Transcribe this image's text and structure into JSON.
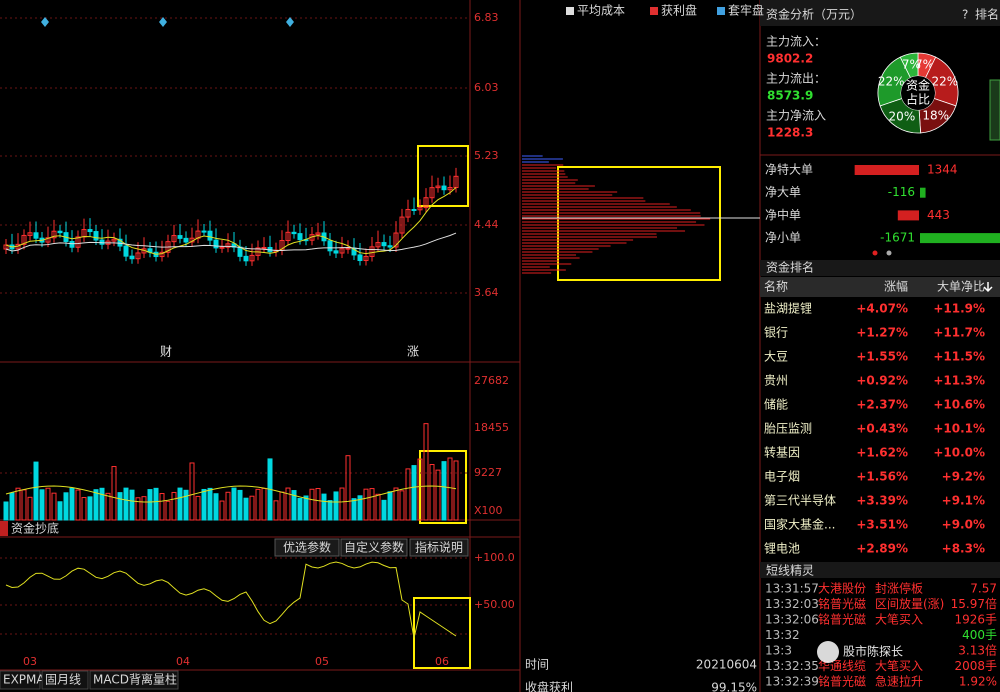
{
  "legend": [
    "平均成本",
    "获利盘",
    "套牢盘"
  ],
  "price_axis": [
    "6.83",
    "6.03",
    "5.23",
    "4.44",
    "3.64"
  ],
  "markers": [
    "财",
    "涨"
  ],
  "volume_axis": [
    "27682",
    "18455",
    "9227",
    "X100"
  ],
  "indicator": {
    "name": "资金抄底",
    "buttons": [
      "优选参数",
      "自定义参数",
      "指标说明"
    ],
    "axis": [
      "+100.0",
      "+50.00"
    ]
  },
  "months": [
    "03",
    "04",
    "05",
    "06"
  ],
  "tabs": [
    "EXPMA",
    "固月线",
    "MACD背离量柱"
  ],
  "profile_info": [
    {
      "label": "时间",
      "value": "20210604"
    },
    {
      "label": "收盘获利",
      "value": "99.15%"
    }
  ],
  "fund": {
    "title": "资金分析（万元）",
    "help": "?",
    "rank": "排名",
    "rows": [
      {
        "label": "主力流入：",
        "value": "9802.2",
        "color": "#ff3030"
      },
      {
        "label": "主力流出：",
        "value": "8573.9",
        "color": "#30e030"
      },
      {
        "label": "主力净流入",
        "value": "1228.3",
        "color": "#ff3030"
      }
    ],
    "donut": {
      "center": [
        "资金",
        "占比"
      ],
      "segments": [
        {
          "value": 7,
          "label": "7%",
          "color": "#e53935"
        },
        {
          "value": 22,
          "label": "22%",
          "color": "#b71c1c"
        },
        {
          "value": 18,
          "label": "18%",
          "color": "#7a0f0f"
        },
        {
          "value": 20,
          "label": "20%",
          "color": "#0f5e14"
        },
        {
          "value": 22,
          "label": "22%",
          "color": "#1e9a2a"
        },
        {
          "value": 7,
          "label": "7%",
          "color": "#2cb53a"
        }
      ]
    }
  },
  "net": [
    {
      "label": "净特大单",
      "value": 1344
    },
    {
      "label": "净大单",
      "value": -116
    },
    {
      "label": "净中单",
      "value": 443
    },
    {
      "label": "净小单",
      "value": -1671
    }
  ],
  "ranking": {
    "title": "资金排名",
    "header": [
      "名称",
      "涨幅",
      "大单净比"
    ],
    "rows": [
      [
        "盐湖提锂",
        "+4.07%",
        "+11.9%"
      ],
      [
        "银行",
        "+1.27%",
        "+11.7%"
      ],
      [
        "大豆",
        "+1.55%",
        "+11.5%"
      ],
      [
        "贵州",
        "+0.92%",
        "+11.3%"
      ],
      [
        "储能",
        "+2.37%",
        "+10.6%"
      ],
      [
        "胎压监测",
        "+0.43%",
        "+10.1%"
      ],
      [
        "转基因",
        "+1.62%",
        "+10.0%"
      ],
      [
        "电子烟",
        "+1.56%",
        "+9.2%"
      ],
      [
        "第三代半导体",
        "+3.39%",
        "+9.1%"
      ],
      [
        "国家大基金...",
        "+3.51%",
        "+9.0%"
      ],
      [
        "锂电池",
        "+2.89%",
        "+8.3%"
      ]
    ]
  },
  "sprite": {
    "title": "短线精灵",
    "rows": [
      {
        "time": "13:31:57",
        "name": "大港股份",
        "event": "封涨停板",
        "value": "7.57",
        "color": "#ff3030"
      },
      {
        "time": "13:32:03",
        "name": "铭普光磁",
        "event": "区间放量(涨)",
        "value": "15.97倍",
        "color": "#ff3030"
      },
      {
        "time": "13:32:06",
        "name": "铭普光磁",
        "event": "大笔买入",
        "value": "1926手",
        "color": "#ff3030"
      },
      {
        "time": "13:32",
        "value": "400手",
        "color": "#30e030"
      },
      {
        "time": "13:3",
        "value": "3.13倍",
        "color": "#ff3030"
      },
      {
        "time": "13:32:35",
        "name": "华通线缆",
        "event": "大笔买入",
        "value": "2008手",
        "color": "#ff3030"
      },
      {
        "time": "13:32:39",
        "name": "铭普光磁",
        "event": "急速拉升",
        "value": "1.92%",
        "color": "#ff3030"
      }
    ]
  },
  "watermark": "股市陈探长"
}
